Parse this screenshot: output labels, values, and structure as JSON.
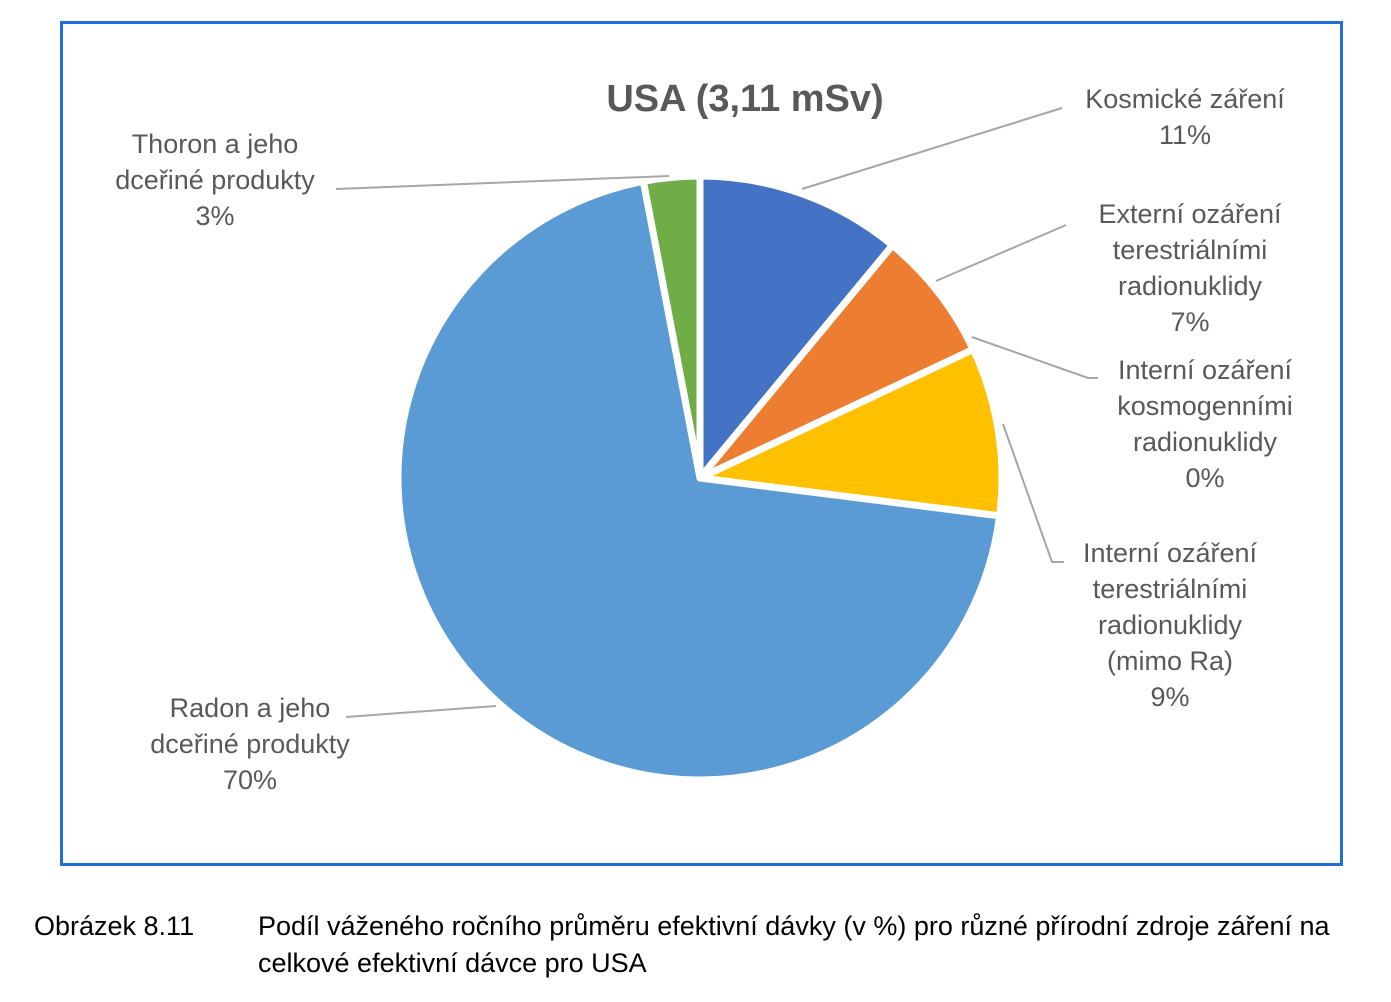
{
  "chart_data": {
    "type": "pie",
    "title": "USA (3,11 mSv)",
    "slices": [
      {
        "label": "Kosmické záření",
        "value": 11,
        "value_label": "11%",
        "color": "#4472c4"
      },
      {
        "label": "Externí ozáření terestriálními radionuklidy",
        "value": 7,
        "value_label": "7%",
        "color": "#ed7d31"
      },
      {
        "label": "Interní ozáření kosmogenními radionuklidy",
        "value": 0,
        "value_label": "0%",
        "color": "#a5a5a5"
      },
      {
        "label": "Interní ozáření terestriálními radionuklidy (mimo Ra)",
        "value": 9,
        "value_label": "9%",
        "color": "#ffc000"
      },
      {
        "label": "Radon a jeho dceřiné produkty",
        "value": 70,
        "value_label": "70%",
        "color": "#5b9bd5"
      },
      {
        "label": "Thoron a jeho dceřiné produkty",
        "value": 3,
        "value_label": "3%",
        "color": "#70ad47"
      }
    ]
  },
  "labels": {
    "kosmicke": "Kosmické záření\n11%",
    "externi": "Externí ozáření\nterestriálními\nradionuklidy\n7%",
    "interni_kosmo": "Interní ozáření\nkosmogenními\nradionuklidy\n0%",
    "interni_terr": "Interní ozáření\nterestriálními\nradionuklidy\n(mimo Ra)\n9%",
    "radon": "Radon a jeho\ndceřiné produkty\n70%",
    "thoron": "Thoron a jeho\ndceřiné produkty\n3%"
  },
  "caption": {
    "figure": "Obrázek 8.11",
    "text": "Podíl váženého  ročního průměru  efektivní dávky (v %) pro různé přírodní zdroje záření na celkové efektivní dávce pro USA"
  }
}
